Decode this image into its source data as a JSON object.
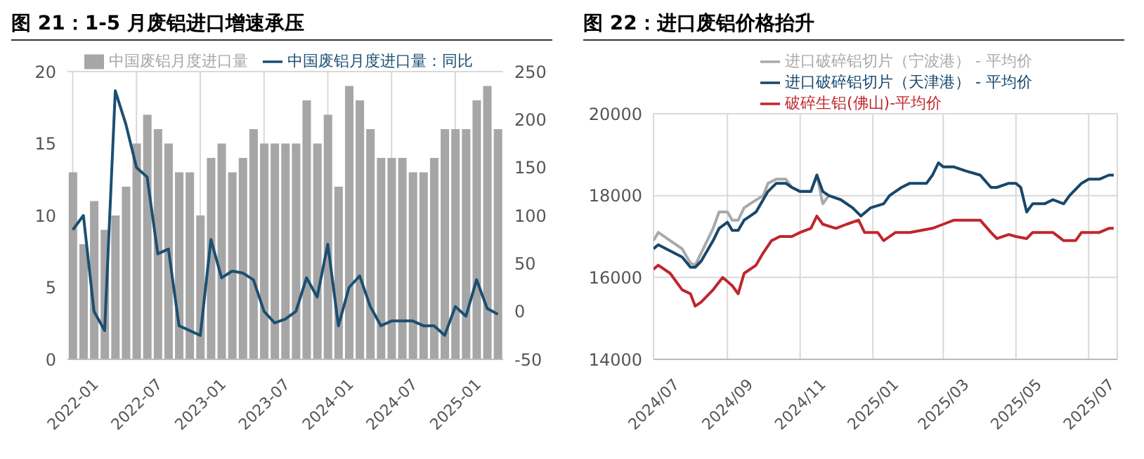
{
  "chart_data": [
    {
      "type": "bar",
      "title": "图 21：1-5 月废铝进口增速承压",
      "categories": [
        "2022-01",
        null,
        null,
        null,
        null,
        null,
        "2022-07",
        null,
        null,
        null,
        null,
        null,
        "2023-01",
        null,
        null,
        null,
        null,
        null,
        "2023-07",
        null,
        null,
        null,
        null,
        null,
        "2024-01",
        null,
        null,
        null,
        null,
        null,
        "2024-07",
        null,
        null,
        null,
        null,
        null,
        "2025-01",
        null,
        null,
        null,
        null
      ],
      "series": [
        {
          "name": "中国废铝月度进口量",
          "type": "bar",
          "color": "#a6a6a6",
          "values": [
            13,
            8,
            11,
            9,
            10,
            12,
            15,
            17,
            16,
            15,
            13,
            13,
            10,
            14,
            15,
            13,
            14,
            16,
            15,
            15,
            15,
            15,
            18,
            15,
            17,
            12,
            19,
            18,
            16,
            14,
            14,
            14,
            13,
            13,
            14,
            16,
            16,
            16,
            18,
            19,
            16
          ]
        },
        {
          "name": "中国废铝月度进口量：同比",
          "type": "line",
          "axis": "y2",
          "color": "#1b4f72",
          "values": [
            85,
            100,
            0,
            -20,
            230,
            195,
            150,
            140,
            60,
            65,
            -15,
            -20,
            -25,
            75,
            35,
            42,
            40,
            33,
            0,
            -12,
            -8,
            0,
            35,
            15,
            70,
            -15,
            25,
            37,
            5,
            -15,
            -10,
            -10,
            -10,
            -15,
            -15,
            -25,
            5,
            -5,
            33,
            3,
            -3
          ]
        }
      ],
      "ylim": [
        0,
        20
      ],
      "yticks": [
        0,
        5,
        10,
        15,
        20
      ],
      "y2lim": [
        -50,
        250
      ],
      "y2ticks": [
        -50,
        0,
        50,
        100,
        150,
        200,
        250
      ],
      "grid": true,
      "legend": "top"
    },
    {
      "type": "line",
      "title": "图 22：进口废铝价格抬升",
      "series": [
        {
          "name": "进口破碎铝切片（宁波港） - 平均价",
          "color": "#a9a9a9",
          "x": [
            "2024-07-01",
            "2024-07-05",
            "2024-07-15",
            "2024-07-25",
            "2024-08-01",
            "2024-08-05",
            "2024-08-10",
            "2024-08-20",
            "2024-08-25",
            "2024-09-01",
            "2024-09-05",
            "2024-09-10",
            "2024-09-15",
            "2024-09-20",
            "2024-10-01",
            "2024-10-05",
            "2024-10-12",
            "2024-10-20",
            "2024-10-25",
            "2024-11-01",
            "2024-11-10",
            "2024-11-15",
            "2024-11-20",
            "2024-11-25"
          ],
          "values": [
            16900,
            17100,
            16900,
            16700,
            16350,
            16300,
            16600,
            17200,
            17600,
            17600,
            17400,
            17400,
            17700,
            17800,
            18000,
            18300,
            18400,
            18400,
            18200,
            18100,
            18100,
            18500,
            17800,
            18000
          ]
        },
        {
          "name": "进口破碎铝切片（天津港） - 平均价",
          "color": "#17476b",
          "x": [
            "2024-07-01",
            "2024-07-05",
            "2024-07-15",
            "2024-07-25",
            "2024-08-01",
            "2024-08-05",
            "2024-08-10",
            "2024-08-20",
            "2024-08-25",
            "2024-09-01",
            "2024-09-05",
            "2024-09-10",
            "2024-09-15",
            "2024-09-20",
            "2024-09-25",
            "2024-10-01",
            "2024-10-05",
            "2024-10-12",
            "2024-10-20",
            "2024-10-25",
            "2024-11-01",
            "2024-11-10",
            "2024-11-15",
            "2024-11-20",
            "2024-11-25",
            "2024-12-05",
            "2024-12-15",
            "2024-12-22",
            "2024-12-30",
            "2025-01-10",
            "2025-01-15",
            "2025-01-25",
            "2025-02-01",
            "2025-02-15",
            "2025-02-20",
            "2025-02-25",
            "2025-03-01",
            "2025-03-10",
            "2025-03-20",
            "2025-04-01",
            "2025-04-10",
            "2025-04-15",
            "2025-04-25",
            "2025-05-01",
            "2025-05-05",
            "2025-05-10",
            "2025-05-15",
            "2025-05-25",
            "2025-06-01",
            "2025-06-10",
            "2025-06-15",
            "2025-06-25",
            "2025-07-01",
            "2025-07-10",
            "2025-07-18",
            "2025-07-22"
          ],
          "values": [
            16700,
            16800,
            16650,
            16500,
            16250,
            16250,
            16400,
            16900,
            17200,
            17350,
            17150,
            17150,
            17400,
            17500,
            17600,
            17900,
            18100,
            18300,
            18300,
            18200,
            18100,
            18100,
            18500,
            18100,
            18000,
            17900,
            17700,
            17500,
            17700,
            17800,
            18000,
            18200,
            18300,
            18300,
            18500,
            18800,
            18700,
            18700,
            18600,
            18500,
            18200,
            18200,
            18300,
            18300,
            18200,
            17600,
            17800,
            17800,
            17900,
            17800,
            18000,
            18300,
            18400,
            18400,
            18500,
            18500
          ]
        },
        {
          "name": "破碎生铝(佛山)-平均价",
          "color": "#c0262d",
          "x": [
            "2024-07-01",
            "2024-07-05",
            "2024-07-15",
            "2024-07-25",
            "2024-08-01",
            "2024-08-05",
            "2024-08-10",
            "2024-08-20",
            "2024-08-28",
            "2024-09-05",
            "2024-09-10",
            "2024-09-15",
            "2024-09-25",
            "2024-10-01",
            "2024-10-08",
            "2024-10-15",
            "2024-10-25",
            "2024-11-01",
            "2024-11-10",
            "2024-11-15",
            "2024-11-20",
            "2024-12-01",
            "2024-12-10",
            "2024-12-20",
            "2024-12-25",
            "2025-01-05",
            "2025-01-10",
            "2025-01-20",
            "2025-02-01",
            "2025-02-20",
            "2025-03-01",
            "2025-03-10",
            "2025-03-20",
            "2025-04-01",
            "2025-04-10",
            "2025-04-15",
            "2025-04-25",
            "2025-05-01",
            "2025-05-10",
            "2025-05-15",
            "2025-05-25",
            "2025-06-01",
            "2025-06-10",
            "2025-06-20",
            "2025-06-25",
            "2025-07-01",
            "2025-07-10",
            "2025-07-18",
            "2025-07-22"
          ],
          "values": [
            16200,
            16300,
            16100,
            15700,
            15600,
            15300,
            15400,
            15700,
            16000,
            15800,
            15600,
            16100,
            16300,
            16600,
            16900,
            17000,
            17000,
            17100,
            17200,
            17500,
            17300,
            17200,
            17300,
            17400,
            17100,
            17100,
            16900,
            17100,
            17100,
            17200,
            17300,
            17400,
            17400,
            17400,
            17100,
            16950,
            17050,
            17000,
            16950,
            17100,
            17100,
            17100,
            16900,
            16900,
            17100,
            17100,
            17100,
            17200,
            17200
          ]
        }
      ],
      "xlim": [
        "2024-07-01",
        "2025-07-25"
      ],
      "xticks": [
        {
          "value": "2024-07-01",
          "label": "2024/07"
        },
        {
          "value": "2024-09-01",
          "label": "2024/09"
        },
        {
          "value": "2024-11-01",
          "label": "2024/11"
        },
        {
          "value": "2025-01-01",
          "label": "2025/01"
        },
        {
          "value": "2025-03-01",
          "label": "2025/03"
        },
        {
          "value": "2025-05-01",
          "label": "2025/05"
        },
        {
          "value": "2025-07-01",
          "label": "2025/07"
        }
      ],
      "ylim": [
        14000,
        20000
      ],
      "yticks": [
        14000,
        16000,
        18000,
        20000
      ],
      "grid": true,
      "legend": "top"
    }
  ]
}
